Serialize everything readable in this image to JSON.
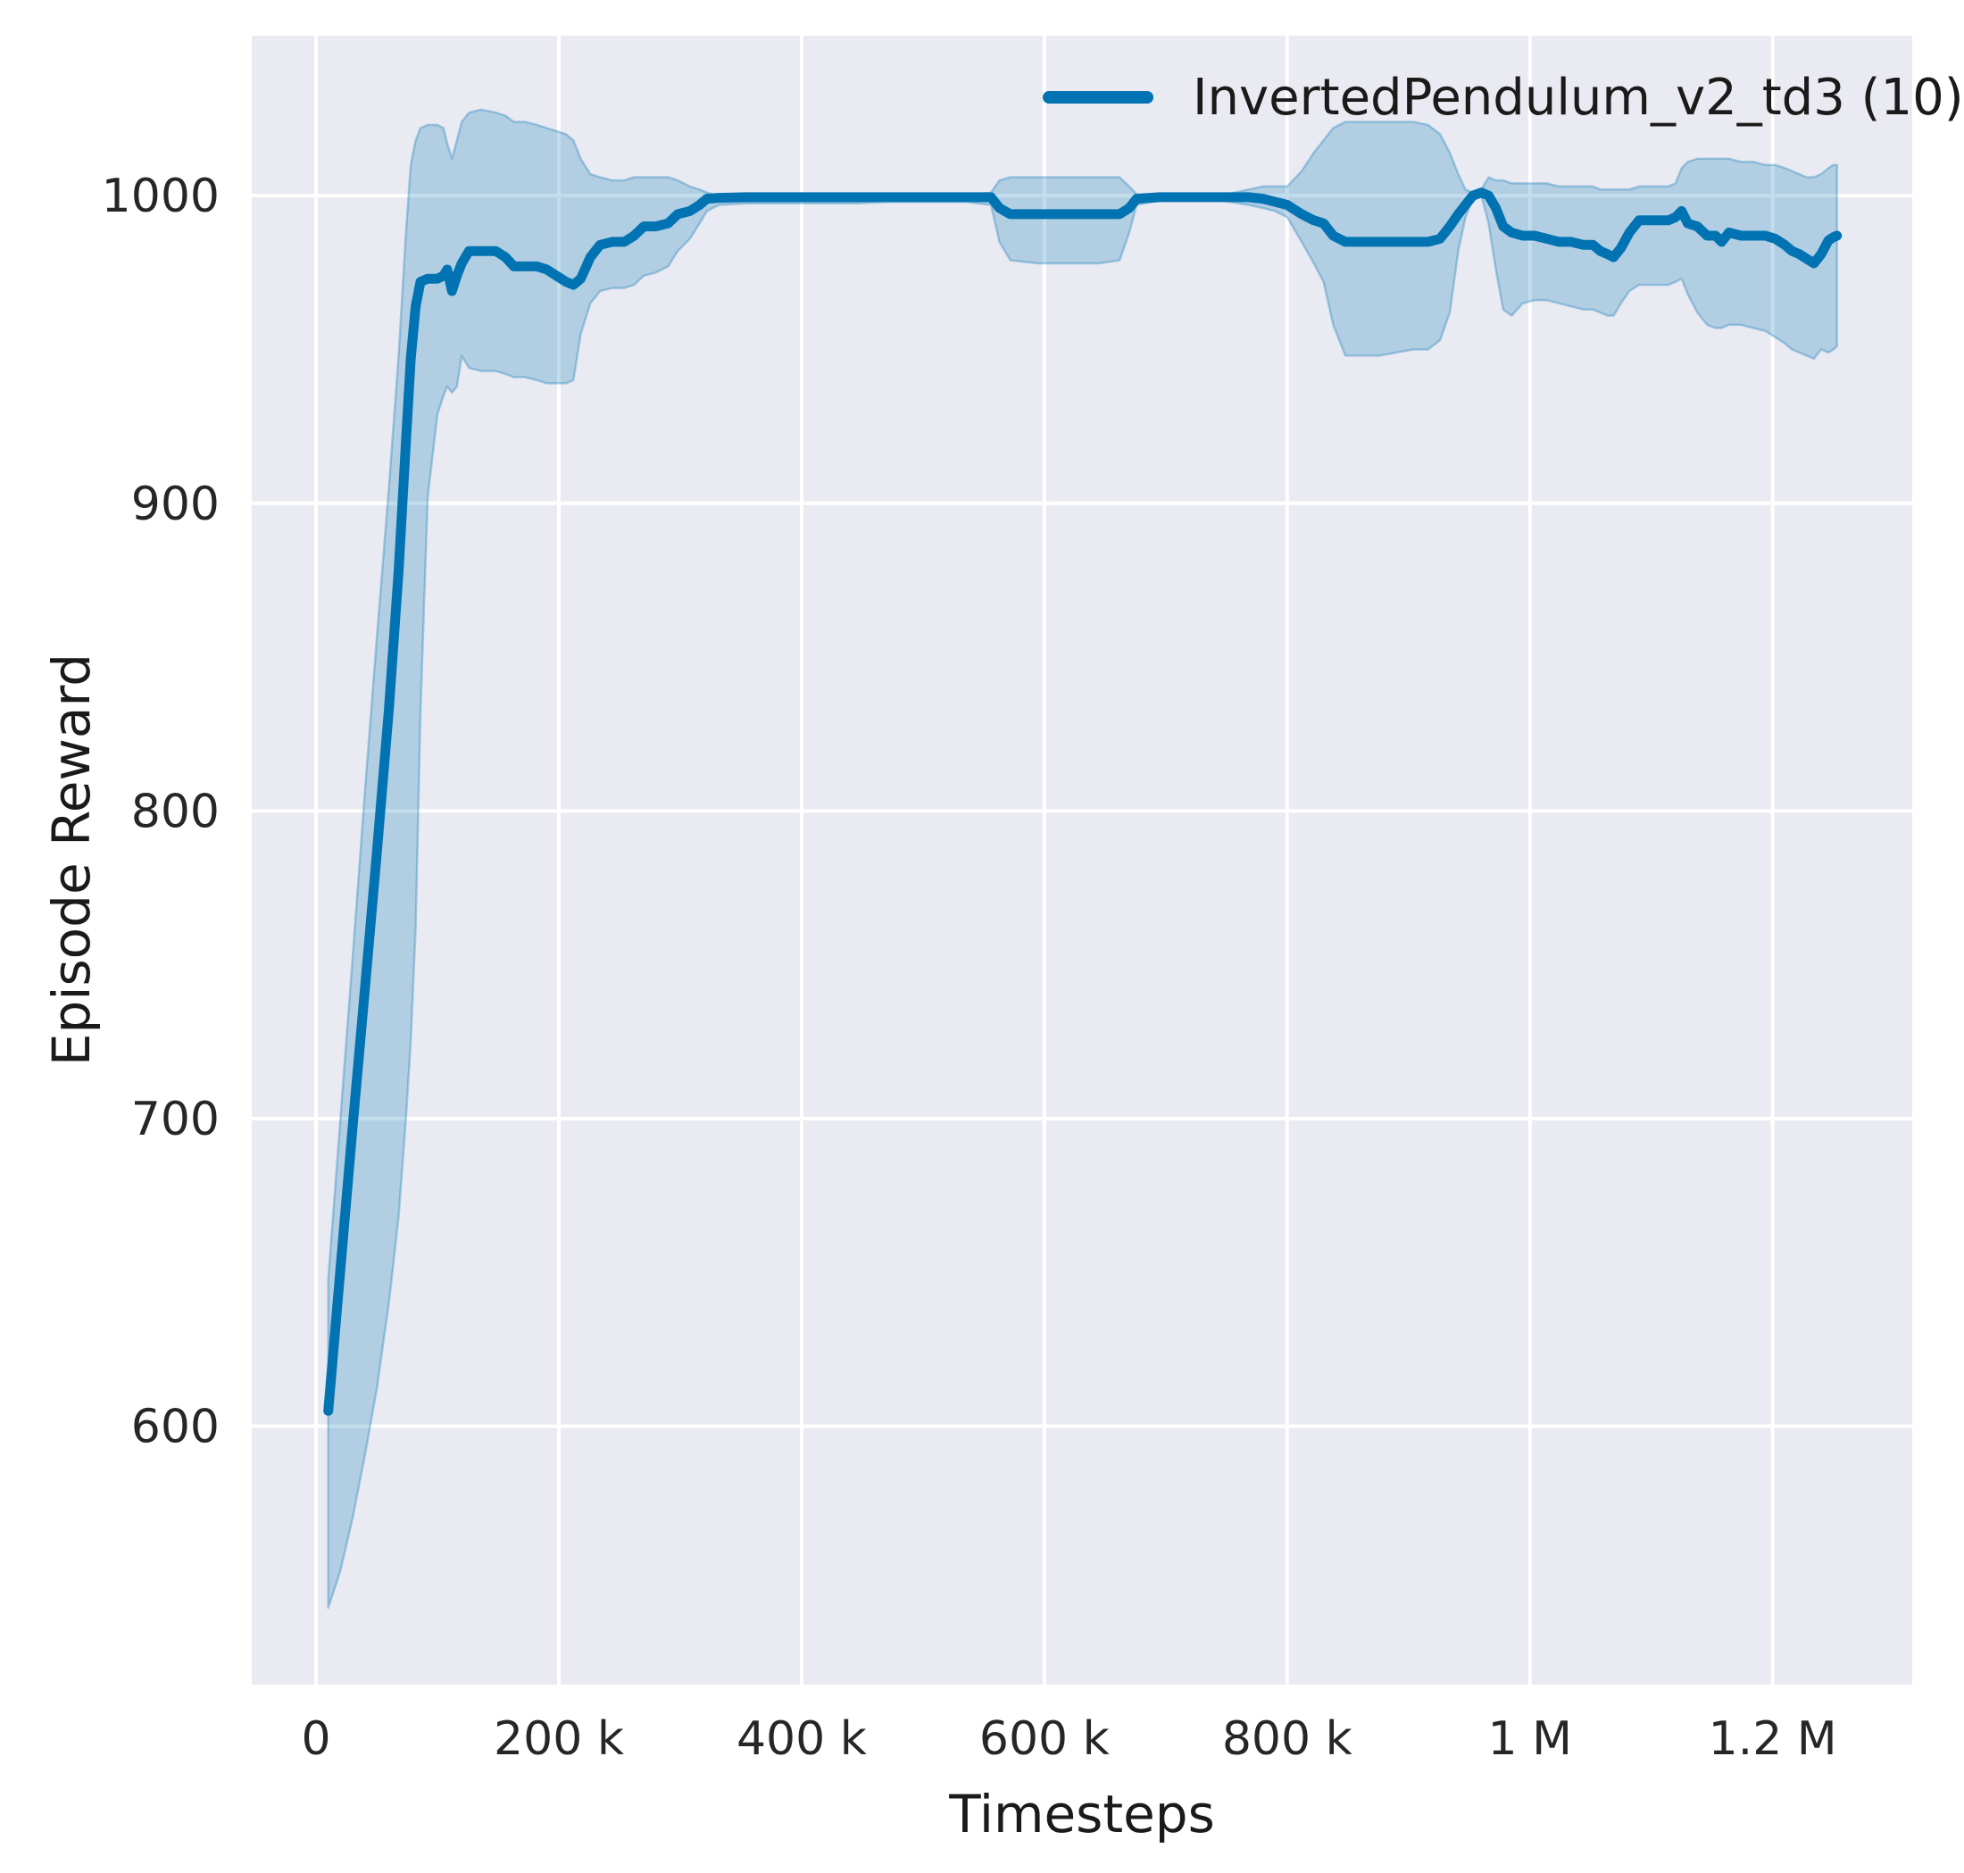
{
  "styles": {
    "figure_bg": "#ffffff",
    "axes_bg": "#eaeaf2",
    "grid_color": "#ffffff",
    "tick_color": "#262626",
    "label_color": "#1a1a1a",
    "line_color": "#0173b2",
    "band_color": "#0173b2",
    "band_opacity": 0.24
  },
  "chart_data": {
    "type": "line",
    "title": "",
    "xlabel": "Timesteps",
    "ylabel": "Episode Reward",
    "grid": true,
    "legend_position": "upper right",
    "legend": [
      {
        "label": "InvertedPendulum_v2_td3 (10)",
        "color": "#0173b2"
      }
    ],
    "x_unit": "timesteps (values below in thousands)",
    "xlim": [
      -53,
      1315
    ],
    "ylim": [
      516,
      1052
    ],
    "x_ticks": [
      {
        "value": 0,
        "label": "0"
      },
      {
        "value": 200,
        "label": "200 k"
      },
      {
        "value": 400,
        "label": "400 k"
      },
      {
        "value": 600,
        "label": "600 k"
      },
      {
        "value": 800,
        "label": "800 k"
      },
      {
        "value": 1000,
        "label": "1 M"
      },
      {
        "value": 1200,
        "label": "1.2 M"
      }
    ],
    "y_ticks": [
      {
        "value": 600,
        "label": "600"
      },
      {
        "value": 700,
        "label": "700"
      },
      {
        "value": 800,
        "label": "800"
      },
      {
        "value": 900,
        "label": "900"
      },
      {
        "value": 1000,
        "label": "1000"
      }
    ],
    "series": [
      {
        "name": "InvertedPendulum_v2_td3 (10)",
        "color": "#0173b2",
        "points_format": [
          "x_thousand_timesteps",
          "mean_reward",
          "band_low",
          "band_high"
        ],
        "points": [
          [
            10,
            605,
            541,
            648
          ],
          [
            20,
            651,
            553,
            700
          ],
          [
            30,
            697,
            570,
            752
          ],
          [
            40,
            741,
            590,
            805
          ],
          [
            50,
            786,
            612,
            856
          ],
          [
            60,
            833,
            640,
            905
          ],
          [
            68,
            878,
            668,
            948
          ],
          [
            74,
            920,
            700,
            988
          ],
          [
            78,
            947,
            725,
            1010
          ],
          [
            82,
            964,
            762,
            1018
          ],
          [
            86,
            972,
            832,
            1022
          ],
          [
            92,
            973,
            902,
            1023
          ],
          [
            100,
            973,
            929,
            1023
          ],
          [
            105,
            974,
            935,
            1022
          ],
          [
            108,
            976,
            938,
            1017
          ],
          [
            112,
            969,
            936,
            1012
          ],
          [
            116,
            974,
            938,
            1018
          ],
          [
            120,
            978,
            948,
            1024
          ],
          [
            126,
            982,
            944,
            1027
          ],
          [
            136,
            982,
            943,
            1028
          ],
          [
            148,
            982,
            943,
            1027
          ],
          [
            156,
            980,
            942,
            1026
          ],
          [
            163,
            977,
            941,
            1024
          ],
          [
            172,
            977,
            941,
            1024
          ],
          [
            182,
            977,
            940,
            1023
          ],
          [
            190,
            976,
            939,
            1022
          ],
          [
            198,
            974,
            939,
            1021
          ],
          [
            206,
            972,
            939,
            1020
          ],
          [
            212,
            971,
            940,
            1018
          ],
          [
            218,
            973,
            955,
            1012
          ],
          [
            226,
            980,
            965,
            1007
          ],
          [
            234,
            984,
            969,
            1006
          ],
          [
            244,
            985,
            970,
            1005
          ],
          [
            254,
            985,
            970,
            1005
          ],
          [
            262,
            987,
            971,
            1006
          ],
          [
            270,
            990,
            974,
            1006
          ],
          [
            280,
            990,
            975,
            1006
          ],
          [
            290,
            991,
            977,
            1006
          ],
          [
            298,
            994,
            982,
            1005
          ],
          [
            308,
            995,
            986,
            1003
          ],
          [
            316,
            997,
            991,
            1002
          ],
          [
            322,
            999,
            995,
            1001
          ],
          [
            332,
            999.3,
            997,
            1000
          ],
          [
            355,
            999.5,
            997.5,
            1000
          ],
          [
            385,
            999.5,
            997.5,
            1000
          ],
          [
            415,
            999.5,
            997.5,
            1000
          ],
          [
            445,
            999.5,
            997.5,
            1000
          ],
          [
            475,
            999.5,
            998,
            1000
          ],
          [
            505,
            999.5,
            998,
            1000
          ],
          [
            535,
            999.5,
            998,
            1000
          ],
          [
            556,
            999.5,
            997,
            1001
          ],
          [
            563,
            996,
            985,
            1005
          ],
          [
            572,
            994,
            979,
            1006
          ],
          [
            595,
            994,
            978,
            1006
          ],
          [
            620,
            994,
            978,
            1006
          ],
          [
            645,
            994,
            978,
            1006
          ],
          [
            662,
            994,
            979,
            1006
          ],
          [
            670,
            996,
            988,
            1003
          ],
          [
            676,
            999,
            997,
            1000.5
          ],
          [
            695,
            999.5,
            998.5,
            1000
          ],
          [
            720,
            999.5,
            998.5,
            1000
          ],
          [
            745,
            999.5,
            998.5,
            1000
          ],
          [
            768,
            999.5,
            997,
            1002
          ],
          [
            780,
            999,
            996,
            1003
          ],
          [
            790,
            998,
            995,
            1003
          ],
          [
            800,
            997,
            993,
            1003
          ],
          [
            812,
            994,
            985,
            1008
          ],
          [
            822,
            992,
            978,
            1014
          ],
          [
            830,
            991,
            972,
            1018
          ],
          [
            838,
            987,
            958,
            1022
          ],
          [
            848,
            985,
            948,
            1024
          ],
          [
            862,
            985,
            948,
            1024
          ],
          [
            876,
            985,
            948,
            1024
          ],
          [
            890,
            985,
            949,
            1024
          ],
          [
            904,
            985,
            950,
            1024
          ],
          [
            916,
            985,
            950,
            1023
          ],
          [
            926,
            986,
            953,
            1020
          ],
          [
            934,
            990,
            962,
            1014
          ],
          [
            941,
            994,
            982,
            1007
          ],
          [
            947,
            997,
            993,
            1002
          ],
          [
            953,
            1000,
            999,
            1001
          ],
          [
            960,
            1001,
            1000,
            1002
          ],
          [
            966,
            1000,
            991,
            1006
          ],
          [
            972,
            996,
            976,
            1005
          ],
          [
            978,
            990,
            963,
            1005
          ],
          [
            985,
            988,
            961,
            1004
          ],
          [
            994,
            987,
            965,
            1004
          ],
          [
            1004,
            987,
            966,
            1004
          ],
          [
            1014,
            986,
            966,
            1004
          ],
          [
            1024,
            985,
            965,
            1003
          ],
          [
            1034,
            985,
            964,
            1003
          ],
          [
            1044,
            984,
            963,
            1003
          ],
          [
            1052,
            984,
            963,
            1003
          ],
          [
            1058,
            982,
            962,
            1002
          ],
          [
            1064,
            981,
            961,
            1002
          ],
          [
            1069,
            980,
            961,
            1002
          ],
          [
            1075,
            983,
            965,
            1002
          ],
          [
            1082,
            988,
            969,
            1002
          ],
          [
            1090,
            992,
            971,
            1003
          ],
          [
            1102,
            992,
            971,
            1003
          ],
          [
            1114,
            992,
            971,
            1003
          ],
          [
            1120,
            993,
            972,
            1004
          ],
          [
            1125,
            995,
            973,
            1009
          ],
          [
            1130,
            991,
            968,
            1011
          ],
          [
            1138,
            990,
            962,
            1012
          ],
          [
            1146,
            987,
            958,
            1012
          ],
          [
            1153,
            987,
            957,
            1012
          ],
          [
            1158,
            985,
            957,
            1012
          ],
          [
            1164,
            988,
            958,
            1012
          ],
          [
            1174,
            987,
            958,
            1011
          ],
          [
            1184,
            987,
            957,
            1011
          ],
          [
            1194,
            987,
            956,
            1010
          ],
          [
            1202,
            986,
            954,
            1010
          ],
          [
            1210,
            984,
            952,
            1009
          ],
          [
            1216,
            982,
            950,
            1008
          ],
          [
            1222,
            981,
            949,
            1007
          ],
          [
            1228,
            979.5,
            948,
            1006
          ],
          [
            1234,
            978,
            947,
            1006
          ],
          [
            1240,
            981,
            950,
            1007
          ],
          [
            1246,
            985.5,
            949,
            1009
          ],
          [
            1250,
            986.5,
            950,
            1010
          ],
          [
            1253,
            987,
            951,
            1010
          ]
        ]
      }
    ]
  }
}
